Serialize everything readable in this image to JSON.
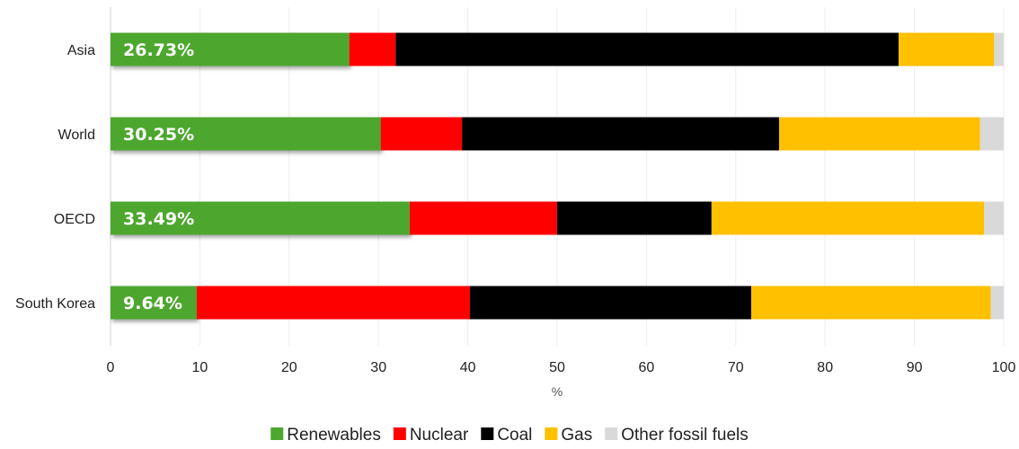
{
  "chart_data": {
    "type": "bar",
    "orientation": "horizontal",
    "stacked": true,
    "categories": [
      "Asia",
      "World",
      "OECD",
      "South Korea"
    ],
    "series": [
      {
        "name": "Renewables",
        "color": "#4ea72e",
        "values": [
          26.73,
          30.25,
          33.49,
          9.64
        ]
      },
      {
        "name": "Nuclear",
        "color": "#ff0000",
        "values": [
          5.2,
          9.1,
          16.5,
          30.6
        ]
      },
      {
        "name": "Coal",
        "color": "#000000",
        "values": [
          56.3,
          35.5,
          17.3,
          31.5
        ]
      },
      {
        "name": "Gas",
        "color": "#ffc000",
        "values": [
          10.7,
          22.5,
          30.5,
          26.8
        ]
      },
      {
        "name": "Other fossil fuels",
        "color": "#d9d9d9",
        "values": [
          1.07,
          2.65,
          2.21,
          1.46
        ]
      }
    ],
    "data_labels": [
      "26.73%",
      "30.25%",
      "33.49%",
      "9.64%"
    ],
    "xticks": [
      "0",
      "10",
      "20",
      "30",
      "40",
      "50",
      "60",
      "70",
      "80",
      "90",
      "100"
    ],
    "xlim": [
      0,
      100
    ],
    "xlabel": "%",
    "ylabel": "",
    "grid": "vertical",
    "legend_position": "bottom"
  }
}
